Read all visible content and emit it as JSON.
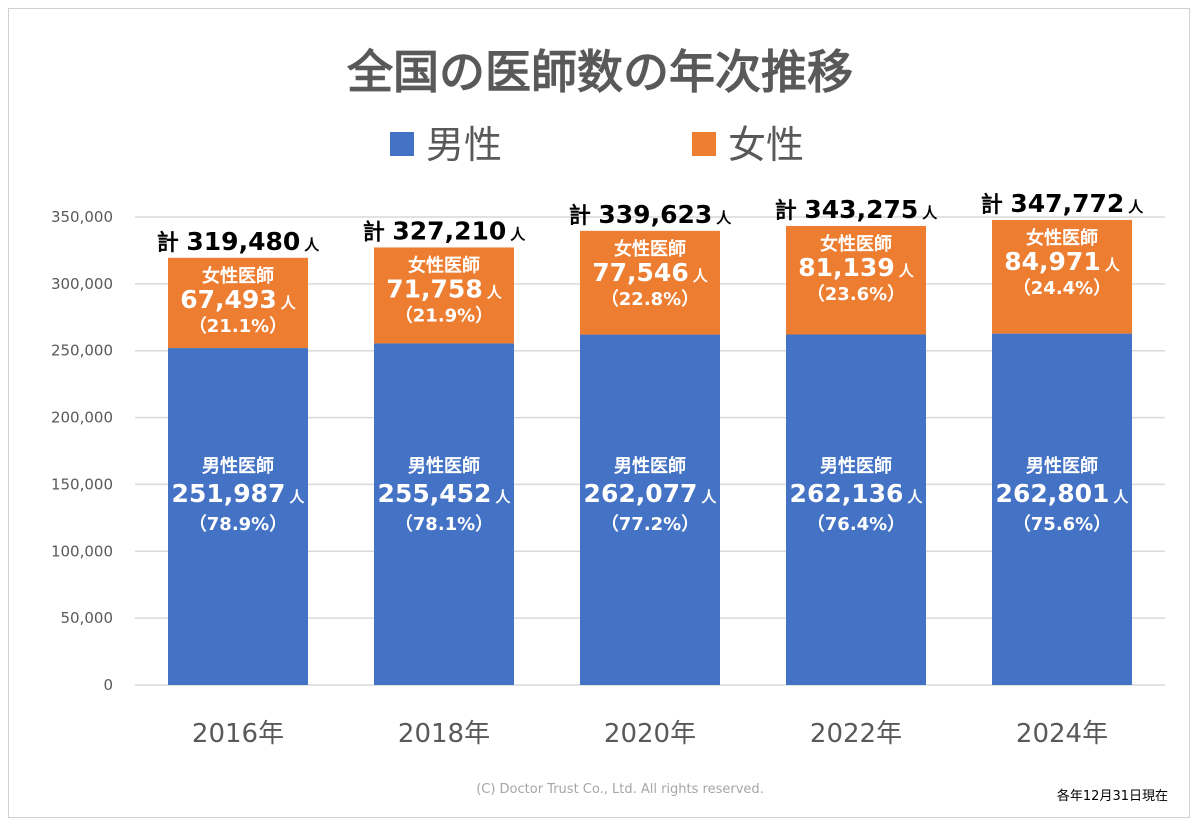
{
  "chart_data": {
    "type": "bar",
    "stacked": true,
    "title": "全国の医師数の年次推移",
    "categories": [
      "2016年",
      "2018年",
      "2020年",
      "2022年",
      "2024年"
    ],
    "series": [
      {
        "name": "男性",
        "color": "#4472c4",
        "segment_label": "男性医師",
        "values": [
          251987,
          255452,
          262077,
          262136,
          262801
        ],
        "value_labels": [
          "251,987",
          "255,452",
          "262,077",
          "262,136",
          "262,801"
        ],
        "percent_labels": [
          "（78.9%）",
          "（78.1%）",
          "（77.2%）",
          "（76.4%）",
          "（75.6%）"
        ]
      },
      {
        "name": "女性",
        "color": "#ed7d31",
        "segment_label": "女性医師",
        "values": [
          67493,
          71758,
          77546,
          81139,
          84971
        ],
        "value_labels": [
          "67,493",
          "71,758",
          "77,546",
          "81,139",
          "84,971"
        ],
        "percent_labels": [
          "（21.1%）",
          "（21.9%）",
          "（22.8%）",
          "（23.6%）",
          "（24.4%）"
        ]
      }
    ],
    "totals": [
      319480,
      327210,
      339623,
      343275,
      347772
    ],
    "total_labels": [
      "319,480",
      "327,210",
      "339,623",
      "343,275",
      "347,772"
    ],
    "total_prefix": "計",
    "unit": "人",
    "ylim": [
      0,
      350000
    ],
    "yticks": [
      0,
      50000,
      100000,
      150000,
      200000,
      250000,
      300000,
      350000
    ],
    "ytick_labels": [
      "0",
      "50,000",
      "100,000",
      "150,000",
      "200,000",
      "250,000",
      "300,000",
      "350,000"
    ],
    "grid": true,
    "legend_position": "top",
    "gridline_color": "#d9d9d9"
  },
  "footer": {
    "copyright": "(C) Doctor Trust Co., Ltd. All rights reserved.",
    "note": "各年12月31日現在"
  }
}
